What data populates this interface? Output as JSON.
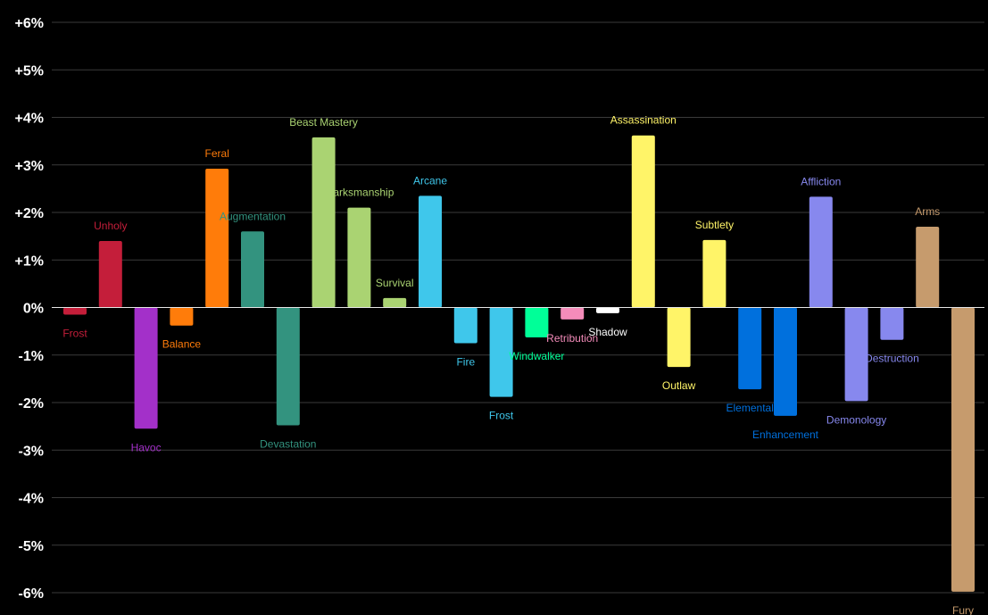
{
  "chart_data": {
    "type": "bar",
    "title": "",
    "xlabel": "",
    "ylabel": "",
    "ylim": [
      -6,
      6
    ],
    "y_ticks": [
      "+6%",
      "+5%",
      "+4%",
      "+3%",
      "+2%",
      "+1%",
      "0%",
      "-1%",
      "-2%",
      "-3%",
      "-4%",
      "-5%",
      "-6%"
    ],
    "y_tick_values": [
      6,
      5,
      4,
      3,
      2,
      1,
      0,
      -1,
      -2,
      -3,
      -4,
      -5,
      -6
    ],
    "grid": true,
    "legend": "none",
    "unit": "%",
    "bars": [
      {
        "label": "Frost",
        "value": -0.15,
        "color": "#C41E3A"
      },
      {
        "label": "Unholy",
        "value": 1.4,
        "color": "#C41E3A"
      },
      {
        "label": "Havoc",
        "value": -2.55,
        "color": "#A330C9"
      },
      {
        "label": "Balance",
        "value": -0.38,
        "color": "#FF7C0A"
      },
      {
        "label": "Feral",
        "value": 2.92,
        "color": "#FF7C0A"
      },
      {
        "label": "Augmentation",
        "value": 1.6,
        "color": "#33937F"
      },
      {
        "label": "Devastation",
        "value": -2.48,
        "color": "#33937F"
      },
      {
        "label": "Beast Mastery",
        "value": 3.58,
        "color": "#AAD372"
      },
      {
        "label": "Marksmanship",
        "value": 2.1,
        "color": "#AAD372"
      },
      {
        "label": "Survival",
        "value": 0.2,
        "color": "#AAD372"
      },
      {
        "label": "Arcane",
        "value": 2.35,
        "color": "#3FC7EB"
      },
      {
        "label": "Fire",
        "value": -0.75,
        "color": "#3FC7EB"
      },
      {
        "label": "Frost",
        "value": -1.88,
        "color": "#3FC7EB"
      },
      {
        "label": "Windwalker",
        "value": -0.63,
        "color": "#00FF98"
      },
      {
        "label": "Retribution",
        "value": -0.25,
        "color": "#F48CBA"
      },
      {
        "label": "Shadow",
        "value": -0.12,
        "color": "#FFFFFF"
      },
      {
        "label": "Assassination",
        "value": 3.62,
        "color": "#FFF468"
      },
      {
        "label": "Outlaw",
        "value": -1.25,
        "color": "#FFF468"
      },
      {
        "label": "Subtlety",
        "value": 1.42,
        "color": "#FFF468"
      },
      {
        "label": "Elemental",
        "value": -1.72,
        "color": "#0070DD"
      },
      {
        "label": "Enhancement",
        "value": -2.28,
        "color": "#0070DD"
      },
      {
        "label": "Affliction",
        "value": 2.33,
        "color": "#8788EE"
      },
      {
        "label": "Demonology",
        "value": -1.97,
        "color": "#8788EE"
      },
      {
        "label": "Destruction",
        "value": -0.68,
        "color": "#8788EE"
      },
      {
        "label": "Arms",
        "value": 1.7,
        "color": "#C69B6D"
      },
      {
        "label": "Fury",
        "value": -5.98,
        "color": "#C69B6D"
      }
    ]
  }
}
